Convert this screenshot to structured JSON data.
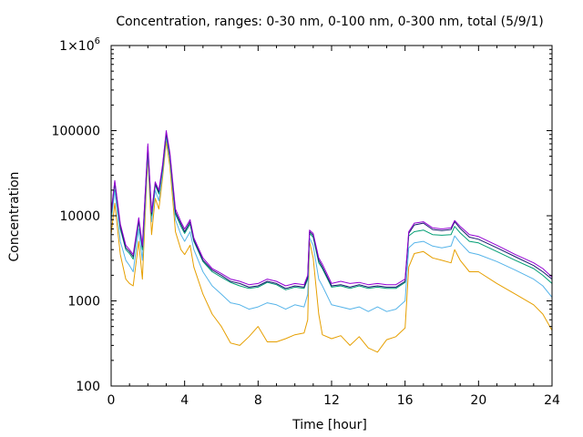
{
  "chart_data": {
    "type": "line",
    "title": "Concentration, ranges: 0-30 nm, 0-100 nm, 0-300 nm, total (5/9/1)",
    "xlabel": "Time [hour]",
    "ylabel": "Concentration",
    "xlim": [
      0,
      24
    ],
    "ylim": [
      100,
      1000000
    ],
    "yscale": "log",
    "grid": false,
    "x_ticks": [
      {
        "value": 0,
        "label": "0"
      },
      {
        "value": 4,
        "label": "4"
      },
      {
        "value": 8,
        "label": "8"
      },
      {
        "value": 12,
        "label": "12"
      },
      {
        "value": 16,
        "label": "16"
      },
      {
        "value": 20,
        "label": "20"
      },
      {
        "value": 24,
        "label": "24"
      }
    ],
    "y_ticks": [
      {
        "value": 100,
        "label": "100"
      },
      {
        "value": 1000,
        "label": "1000"
      },
      {
        "value": 10000,
        "label": "10000"
      },
      {
        "value": 100000,
        "label": "100000"
      },
      {
        "value": 1000000,
        "label": "1×10",
        "sup": "6"
      }
    ],
    "x": [
      0,
      0.2,
      0.5,
      0.8,
      1.0,
      1.2,
      1.5,
      1.7,
      2.0,
      2.2,
      2.4,
      2.6,
      2.8,
      3.0,
      3.2,
      3.5,
      3.8,
      4.0,
      4.3,
      4.5,
      5.0,
      5.5,
      6.0,
      6.5,
      7.0,
      7.5,
      8.0,
      8.5,
      9.0,
      9.5,
      10.0,
      10.5,
      10.7,
      10.8,
      11.0,
      11.3,
      11.5,
      12.0,
      12.5,
      13.0,
      13.5,
      14.0,
      14.5,
      15.0,
      15.5,
      16.0,
      16.2,
      16.5,
      17.0,
      17.5,
      18.0,
      18.5,
      18.7,
      19.0,
      19.5,
      20.0,
      21.0,
      22.0,
      23.0,
      23.5,
      24.0
    ],
    "series": [
      {
        "color": "#9400d3",
        "values": [
          11000,
          26000,
          8000,
          4500,
          4000,
          3500,
          9500,
          4500,
          70000,
          11000,
          25000,
          20000,
          40000,
          100000,
          55000,
          12000,
          8500,
          7000,
          9000,
          5500,
          3200,
          2400,
          2100,
          1800,
          1700,
          1550,
          1600,
          1800,
          1700,
          1500,
          1600,
          1550,
          2000,
          6800,
          6200,
          3200,
          2700,
          1600,
          1700,
          1600,
          1650,
          1550,
          1600,
          1550,
          1550,
          1800,
          6500,
          8200,
          8500,
          7200,
          7000,
          7200,
          8800,
          7500,
          6000,
          5700,
          4500,
          3500,
          2800,
          2400,
          1900
        ]
      },
      {
        "color": "#191970",
        "values": [
          10500,
          25000,
          7500,
          4200,
          3800,
          3300,
          9000,
          4300,
          65000,
          10500,
          24000,
          19000,
          38000,
          95000,
          52000,
          11000,
          8000,
          6500,
          8500,
          5200,
          3000,
          2300,
          2000,
          1700,
          1600,
          1450,
          1500,
          1700,
          1600,
          1400,
          1500,
          1450,
          1900,
          6500,
          5900,
          3000,
          2500,
          1500,
          1550,
          1450,
          1550,
          1450,
          1500,
          1450,
          1450,
          1700,
          6200,
          7800,
          8200,
          6900,
          6700,
          6900,
          8500,
          7100,
          5600,
          5300,
          4200,
          3300,
          2600,
          2200,
          1800
        ]
      },
      {
        "color": "#009e73",
        "values": [
          10000,
          24000,
          7000,
          4000,
          3600,
          3100,
          8500,
          4000,
          60000,
          10000,
          23000,
          18000,
          36000,
          90000,
          50000,
          10500,
          7500,
          6200,
          8000,
          5000,
          2900,
          2200,
          1900,
          1650,
          1500,
          1400,
          1450,
          1650,
          1550,
          1350,
          1450,
          1400,
          1800,
          6200,
          5600,
          2800,
          2400,
          1450,
          1500,
          1400,
          1500,
          1400,
          1450,
          1400,
          1400,
          1650,
          5800,
          6500,
          6800,
          6000,
          5900,
          6000,
          7500,
          6300,
          5000,
          4800,
          3800,
          3000,
          2400,
          2000,
          1600
        ]
      },
      {
        "color": "#56b4e9",
        "values": [
          8500,
          20000,
          5000,
          3000,
          2600,
          2200,
          7000,
          3000,
          55000,
          8500,
          20000,
          15000,
          32000,
          85000,
          45000,
          9000,
          6000,
          5000,
          6500,
          4000,
          2200,
          1500,
          1200,
          950,
          900,
          800,
          850,
          950,
          900,
          800,
          900,
          850,
          1200,
          5500,
          4500,
          1800,
          1500,
          900,
          850,
          800,
          850,
          750,
          850,
          750,
          800,
          1000,
          4200,
          4800,
          5000,
          4400,
          4200,
          4400,
          5800,
          4800,
          3700,
          3500,
          2900,
          2300,
          1800,
          1500,
          1100
        ]
      },
      {
        "color": "#e69f00",
        "values": [
          6000,
          14000,
          3500,
          1800,
          1600,
          1500,
          5000,
          1800,
          50000,
          6000,
          16000,
          12000,
          28000,
          75000,
          38000,
          6500,
          4000,
          3500,
          4500,
          2500,
          1200,
          700,
          500,
          320,
          300,
          380,
          500,
          330,
          330,
          360,
          400,
          420,
          600,
          5000,
          3200,
          700,
          400,
          360,
          390,
          300,
          380,
          280,
          250,
          350,
          380,
          480,
          2500,
          3600,
          3800,
          3200,
          3000,
          2800,
          4000,
          3000,
          2200,
          2200,
          1600,
          1200,
          900,
          700,
          450
        ]
      }
    ]
  }
}
